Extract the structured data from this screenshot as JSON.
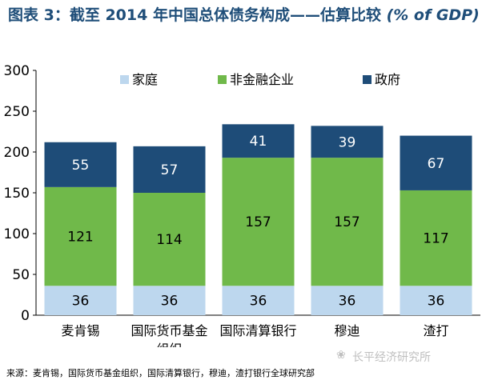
{
  "title": {
    "main": "图表 3：截至 2014 年中国总体债务构成——估算比较 ",
    "unit": "(% of GDP)"
  },
  "source": "来源：麦肯锡，国际货币基金组织，国际清算银行，穆迪，渣打银行全球研究部",
  "watermark": "长平经济研究所",
  "chart_data": {
    "type": "bar",
    "stacked": true,
    "categories": [
      [
        "麦肯锡"
      ],
      [
        "国际货币基金",
        "组织"
      ],
      [
        "国际清算银行"
      ],
      [
        "穆迪"
      ],
      [
        "渣打"
      ]
    ],
    "series": [
      {
        "name": "家庭",
        "color": "#bdd7ee",
        "values": [
          36,
          36,
          36,
          36,
          36
        ]
      },
      {
        "name": "非金融企业",
        "color": "#70b94a",
        "values": [
          121,
          114,
          157,
          157,
          117
        ]
      },
      {
        "name": "政府",
        "color": "#1e4c78",
        "values": [
          55,
          57,
          41,
          39,
          67
        ]
      }
    ],
    "label_colors": [
      "#000000",
      "#000000",
      "#ffffff"
    ],
    "ylim": [
      0,
      300
    ],
    "yticks": [
      0,
      50,
      100,
      150,
      200,
      250,
      300
    ],
    "legend_position": "top",
    "grid": false
  }
}
